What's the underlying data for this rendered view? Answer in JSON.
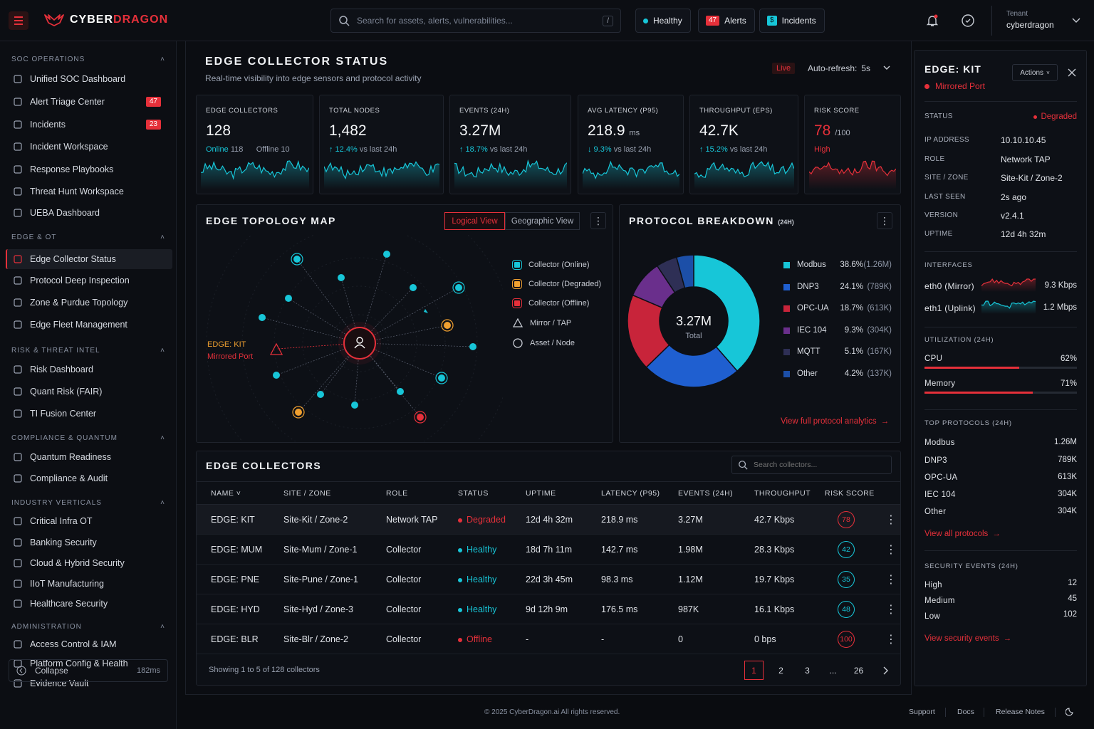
{
  "brand": {
    "part1": "CYBER",
    "part2": "DRAGON",
    "accent": "#e5303a"
  },
  "topbar": {
    "search_placeholder": "Search for assets, alerts, vulnerabilities...",
    "shortcut": "/",
    "health": "Healthy",
    "alerts_count": "47",
    "alerts_label": "Alerts",
    "incidents_label": "Incidents",
    "tenant_label": "Tenant",
    "tenant_name": "cyberdragon"
  },
  "sidebar": {
    "sections": [
      {
        "title": "SOC OPERATIONS",
        "items": [
          {
            "label": "Unified SOC Dashboard"
          },
          {
            "label": "Alert Triage Center",
            "count": "47"
          },
          {
            "label": "Incidents",
            "count": "23"
          },
          {
            "label": "Incident Workspace"
          },
          {
            "label": "Response Playbooks"
          },
          {
            "label": "Threat Hunt Workspace"
          },
          {
            "label": "UEBA Dashboard"
          }
        ]
      },
      {
        "title": "EDGE & OT",
        "items": [
          {
            "label": "Edge Collector Status"
          },
          {
            "label": "Protocol Deep Inspection"
          },
          {
            "label": "Zone & Purdue Topology"
          },
          {
            "label": "Edge Fleet Management"
          }
        ]
      },
      {
        "title": "RISK & THREAT INTEL",
        "items": [
          {
            "label": "Risk Dashboard"
          },
          {
            "label": "Quant Risk (FAIR)"
          },
          {
            "label": "TI Fusion Center"
          }
        ]
      },
      {
        "title": "COMPLIANCE & QUANTUM",
        "items": [
          {
            "label": "Quantum Readiness"
          },
          {
            "label": "Compliance & Audit"
          }
        ]
      },
      {
        "title": "INDUSTRY VERTICALS",
        "items": [
          {
            "label": "Critical Infra OT"
          },
          {
            "label": "Banking Security"
          },
          {
            "label": "Cloud & Hybrid Security"
          },
          {
            "label": "IIoT Manufacturing"
          },
          {
            "label": "Healthcare Security"
          }
        ]
      },
      {
        "title": "ADMINISTRATION",
        "items": [
          {
            "label": "Access Control & IAM"
          },
          {
            "label": "Platform Config & Health"
          },
          {
            "label": "Evidence Vault"
          }
        ]
      }
    ],
    "collapse_label": "Collapse",
    "latency": "182ms"
  },
  "header": {
    "title": "EDGE COLLECTOR STATUS",
    "subtitle": "Real-time visibility into edge sensors and protocol activity",
    "live": "Live",
    "refresh_label": "Auto-refresh:",
    "refresh_value": "5s"
  },
  "kpis": [
    {
      "label": "EDGE COLLECTORS",
      "value": "128",
      "online_label": "Online",
      "online": "118",
      "offline_label": "Offline",
      "offline": "10"
    },
    {
      "label": "TOTAL NODES",
      "value": "1,482",
      "delta": "↑ 12.4%",
      "delta_text": "vs last 24h"
    },
    {
      "label": "EVENTS (24H)",
      "value": "3.27M",
      "delta": "↑ 18.7%",
      "delta_text": "vs last 24h"
    },
    {
      "label": "AVG LATENCY (P95)",
      "value": "218.9",
      "unit": "ms",
      "delta": "↓ 9.3%",
      "delta_text": "vs last 24h"
    },
    {
      "label": "THROUGHPUT (EPS)",
      "value": "42.7K",
      "delta": "↑ 15.2%",
      "delta_text": "vs last 24h"
    },
    {
      "label": "RISK SCORE",
      "value": "78",
      "unit": "/100",
      "level": "High"
    }
  ],
  "topology": {
    "title": "EDGE TOPOLOGY MAP",
    "view_logical": "Logical View",
    "view_geo": "Geographic View",
    "edge_name": "EDGE: KIT",
    "edge_sub": "Mirrored Port",
    "legend": [
      "Collector (Online)",
      "Collector (Degraded)",
      "Collector (Offline)",
      "Mirror / TAP",
      "Asset / Node"
    ]
  },
  "protocols": {
    "title": "PROTOCOL BREAKDOWN",
    "suffix": "(24H)",
    "total": "3.27M",
    "total_label": "Total",
    "link": "View full protocol analytics",
    "items": [
      {
        "name": "Modbus",
        "pct": "38.6%",
        "val": "(1.26M)",
        "color": "#17c6d8",
        "share": 38.6
      },
      {
        "name": "DNP3",
        "pct": "24.1%",
        "val": "(789K)",
        "color": "#1f5fd0",
        "share": 24.1
      },
      {
        "name": "OPC-UA",
        "pct": "18.7%",
        "val": "(613K)",
        "color": "#c8243a",
        "share": 18.7
      },
      {
        "name": "IEC 104",
        "pct": "9.3%",
        "val": "(304K)",
        "color": "#6a2f8c",
        "share": 9.3
      },
      {
        "name": "MQTT",
        "pct": "5.1%",
        "val": "(167K)",
        "color": "#2e2f55",
        "share": 5.1
      },
      {
        "name": "Other",
        "pct": "4.2%",
        "val": "(137K)",
        "color": "#1c4fa8",
        "share": 4.2
      }
    ]
  },
  "collectors": {
    "title": "EDGE COLLECTORS",
    "search_placeholder": "Search collectors...",
    "columns": [
      "NAME",
      "SITE / ZONE",
      "ROLE",
      "STATUS",
      "UPTIME",
      "LATENCY (P95)",
      "EVENTS (24H)",
      "THROUGHPUT",
      "RISK SCORE"
    ],
    "rows": [
      {
        "name": "EDGE: KIT",
        "site": "Site-Kit / Zone-2",
        "role": "Network TAP",
        "status": "Degraded",
        "uptime": "12d 4h 32m",
        "latency": "218.9 ms",
        "events": "3.27M",
        "throughput": "42.7 Kbps",
        "risk": "78",
        "tone": "red"
      },
      {
        "name": "EDGE: MUM",
        "site": "Site-Mum / Zone-1",
        "role": "Collector",
        "status": "Healthy",
        "uptime": "18d 7h 11m",
        "latency": "142.7 ms",
        "events": "1.98M",
        "throughput": "28.3 Kbps",
        "risk": "42",
        "tone": "cyan"
      },
      {
        "name": "EDGE: PNE",
        "site": "Site-Pune / Zone-1",
        "role": "Collector",
        "status": "Healthy",
        "uptime": "22d 3h 45m",
        "latency": "98.3 ms",
        "events": "1.12M",
        "throughput": "19.7 Kbps",
        "risk": "35",
        "tone": "cyan"
      },
      {
        "name": "EDGE: HYD",
        "site": "Site-Hyd / Zone-3",
        "role": "Collector",
        "status": "Healthy",
        "uptime": "9d 12h 9m",
        "latency": "176.5 ms",
        "events": "987K",
        "throughput": "16.1 Kbps",
        "risk": "48",
        "tone": "cyan"
      },
      {
        "name": "EDGE: BLR",
        "site": "Site-Blr / Zone-2",
        "role": "Collector",
        "status": "Offline",
        "uptime": "-",
        "latency": "-",
        "events": "0",
        "throughput": "0 bps",
        "risk": "100",
        "tone": "red"
      }
    ],
    "showing": "Showing 1 to 5 of 128 collectors",
    "pages": [
      "1",
      "2",
      "3",
      "...",
      "26"
    ]
  },
  "detail": {
    "title": "EDGE: KIT",
    "subtitle": "Mirrored Port",
    "actions": "Actions",
    "fields": [
      {
        "k": "STATUS",
        "v": "Degraded"
      },
      {
        "k": "IP ADDRESS",
        "v": "10.10.10.45"
      },
      {
        "k": "ROLE",
        "v": "Network TAP"
      },
      {
        "k": "SITE / ZONE",
        "v": "Site-Kit / Zone-2"
      },
      {
        "k": "LAST SEEN",
        "v": "2s ago"
      },
      {
        "k": "VERSION",
        "v": "v2.4.1"
      },
      {
        "k": "UPTIME",
        "v": "12d 4h 32m"
      }
    ],
    "interfaces_title": "INTERFACES",
    "interfaces": [
      {
        "name": "eth0 (Mirror)",
        "rate": "9.3 Kbps"
      },
      {
        "name": "eth1 (Uplink)",
        "rate": "1.2 Mbps"
      }
    ],
    "util_title": "UTILIZATION (24H)",
    "util": [
      {
        "name": "CPU",
        "pct": "62%",
        "level": 0.62
      },
      {
        "name": "Memory",
        "pct": "71%",
        "level": 0.71
      }
    ],
    "top_title": "TOP PROTOCOLS (24H)",
    "top": [
      {
        "name": "Modbus",
        "v": "1.26M"
      },
      {
        "name": "DNP3",
        "v": "789K"
      },
      {
        "name": "OPC-UA",
        "v": "613K"
      },
      {
        "name": "IEC 104",
        "v": "304K"
      },
      {
        "name": "Other",
        "v": "304K"
      }
    ],
    "top_link": "View all protocols",
    "sec_title": "SECURITY EVENTS (24H)",
    "sec": [
      {
        "name": "High",
        "v": "12"
      },
      {
        "name": "Medium",
        "v": "45"
      },
      {
        "name": "Low",
        "v": "102"
      }
    ],
    "sec_link": "View security events"
  },
  "footer": {
    "copyright": "© 2025 CyberDragon.ai  All rights reserved.",
    "support": "Support",
    "docs": "Docs",
    "release": "Release Notes"
  }
}
